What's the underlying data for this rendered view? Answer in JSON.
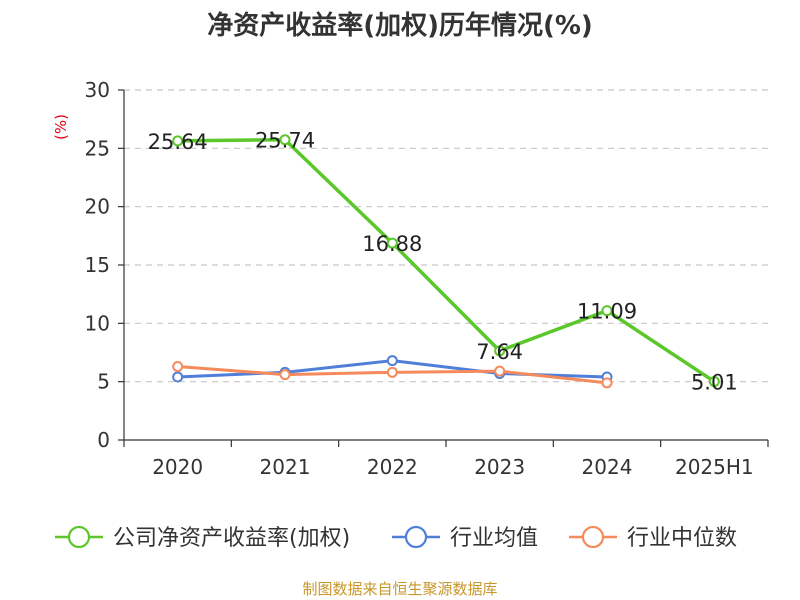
{
  "chart_data": {
    "type": "line",
    "title": "净资产收益率(加权)历年情况(%)",
    "ylabel": "(%)",
    "categories": [
      "2020",
      "2021",
      "2022",
      "2023",
      "2024",
      "2025H1"
    ],
    "ylim": [
      0,
      30
    ],
    "yticks": [
      0,
      5,
      10,
      15,
      20,
      25,
      30
    ],
    "grid": true,
    "legend_position": "bottom",
    "series": [
      {
        "name": "公司净资产收益率(加权)",
        "color": "#5ac72a",
        "values": [
          25.64,
          25.74,
          16.88,
          7.64,
          11.09,
          5.01
        ],
        "labels": [
          "25.64",
          "25.74",
          "16.88",
          "7.64",
          "11.09",
          "5.01"
        ]
      },
      {
        "name": "行业均值",
        "color": "#4f7fd9",
        "values": [
          5.4,
          5.8,
          6.8,
          5.7,
          5.4,
          null
        ]
      },
      {
        "name": "行业中位数",
        "color": "#f58a5c",
        "values": [
          6.3,
          5.6,
          5.8,
          5.9,
          4.9,
          null
        ]
      }
    ]
  },
  "source_text": "制图数据来自恒生聚源数据库"
}
